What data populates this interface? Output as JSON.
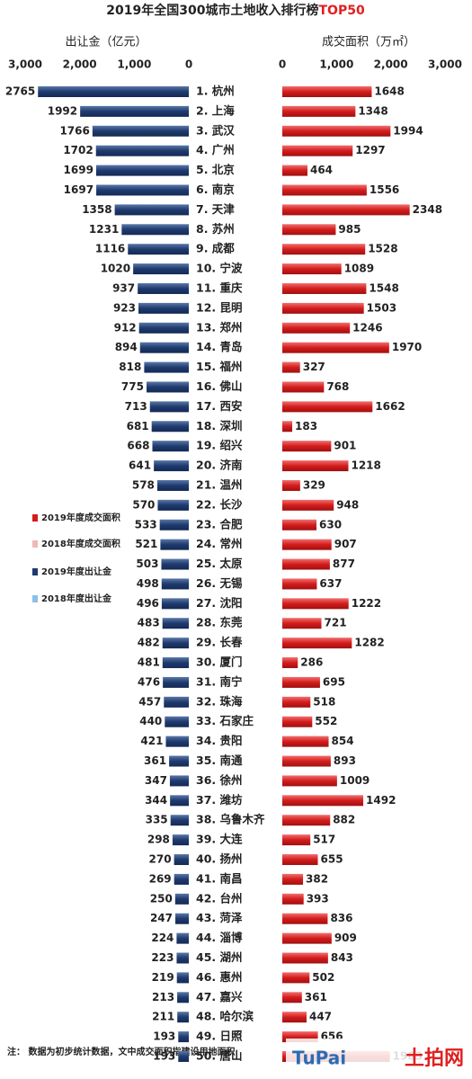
{
  "chart_data": {
    "type": "butterfly",
    "title": "2019年全国300城市土地收入排行榜",
    "title_highlight": "TOP50",
    "xlabel": "出让金（亿元）",
    "x2label": "成交面积（万㎡）",
    "xlim": [
      0,
      3000
    ],
    "xticks": [
      {
        "value": 3000,
        "label": "3,000"
      },
      {
        "value": 2000,
        "label": "2,000"
      },
      {
        "value": 1000,
        "label": "1,000"
      },
      0
    ],
    "x2lim": [
      0,
      3000
    ],
    "x2ticks": [
      0,
      {
        "value": 1000,
        "label": "1,000"
      },
      {
        "value": 2000,
        "label": "2,000"
      },
      {
        "value": 3000,
        "label": "3,000"
      }
    ],
    "categories": [
      "1. 杭州",
      "2. 上海",
      "3. 武汉",
      "4. 广州",
      "5. 北京",
      "6. 南京",
      "7. 天津",
      "8. 苏州",
      "9. 成都",
      "10. 宁波",
      "11. 重庆",
      "12. 昆明",
      "13. 郑州",
      "14. 青岛",
      "15. 福州",
      "16. 佛山",
      "17. 西安",
      "18. 深圳",
      "19. 绍兴",
      "20. 济南",
      "21. 温州",
      "22. 长沙",
      "23. 合肥",
      "24. 常州",
      "25. 太原",
      "26. 无锡",
      "27. 沈阳",
      "28. 东莞",
      "29. 长春",
      "30. 厦门",
      "31. 南宁",
      "32. 珠海",
      "33. 石家庄",
      "34. 贵阳",
      "35. 南通",
      "36. 徐州",
      "37. 潍坊",
      "38. 乌鲁木齐",
      "39. 大连",
      "40. 扬州",
      "41. 南昌",
      "42. 台州",
      "43. 菏泽",
      "44. 淄博",
      "45. 湖州",
      "46. 惠州",
      "47. 嘉兴",
      "48. 哈尔滨",
      "49. 日照",
      "50. 唐山"
    ],
    "series": [
      {
        "side": "left",
        "color": "#1f3a6e",
        "values": [
          2765,
          1992,
          1766,
          1702,
          1699,
          1697,
          1358,
          1231,
          1116,
          1020,
          937,
          923,
          912,
          894,
          818,
          775,
          713,
          681,
          668,
          641,
          578,
          570,
          533,
          521,
          503,
          498,
          496,
          483,
          482,
          481,
          476,
          457,
          440,
          421,
          361,
          347,
          344,
          335,
          298,
          270,
          269,
          250,
          247,
          224,
          223,
          219,
          213,
          211,
          193,
          193
        ]
      },
      {
        "side": "right",
        "color": "#d41c1c",
        "values": [
          1648,
          1348,
          1994,
          1297,
          464,
          1556,
          2348,
          985,
          1528,
          1089,
          1548,
          1503,
          1246,
          1970,
          327,
          768,
          1662,
          183,
          901,
          1218,
          329,
          948,
          630,
          907,
          877,
          637,
          1222,
          721,
          1282,
          286,
          695,
          518,
          552,
          854,
          893,
          1009,
          1492,
          882,
          517,
          655,
          382,
          393,
          836,
          909,
          843,
          502,
          361,
          447,
          656,
          1983
        ]
      }
    ],
    "legend": {
      "position": "left",
      "entries": [
        {
          "name": "2019年度成交面积",
          "color": "#d41c1c"
        },
        {
          "name": "2018年度成交面积",
          "color": "#f0b8b8"
        },
        {
          "name": "2019年度出让金",
          "color": "#1f3a6e"
        },
        {
          "name": "2018年度出让金",
          "color": "#8cc0e8"
        }
      ]
    },
    "note": "注：  数据为初步统计数据，文中成交面积指建设用地面积",
    "brand_en": "TuPai",
    "brand_cn": "土拍网"
  }
}
